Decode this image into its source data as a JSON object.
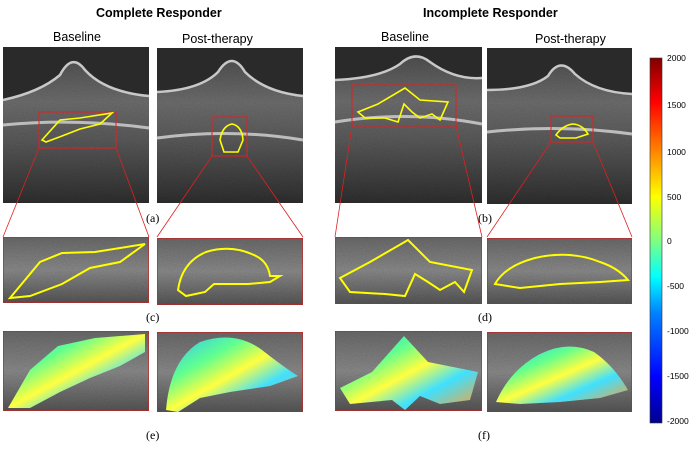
{
  "groups": [
    {
      "title": "Complete Responder",
      "baseline_label": "Baseline",
      "post_label": "Post-therapy"
    },
    {
      "title": "Incomplete Responder",
      "baseline_label": "Baseline",
      "post_label": "Post-therapy"
    }
  ],
  "panel_labels": [
    "(a)",
    "(b)",
    "(c)",
    "(d)",
    "(e)",
    "(f)"
  ],
  "colorbar": {
    "ticks": [
      "2000",
      "1500",
      "1000",
      "500",
      "0",
      "-500",
      "-1000",
      "-1500",
      "-2000"
    ],
    "colors": [
      "#00008f",
      "#0000ff",
      "#0080ff",
      "#00ffff",
      "#80ff80",
      "#ffff00",
      "#ff8000",
      "#ff0000",
      "#800000"
    ]
  },
  "colors": {
    "contour": "#ffff00",
    "box": "#e02020"
  }
}
